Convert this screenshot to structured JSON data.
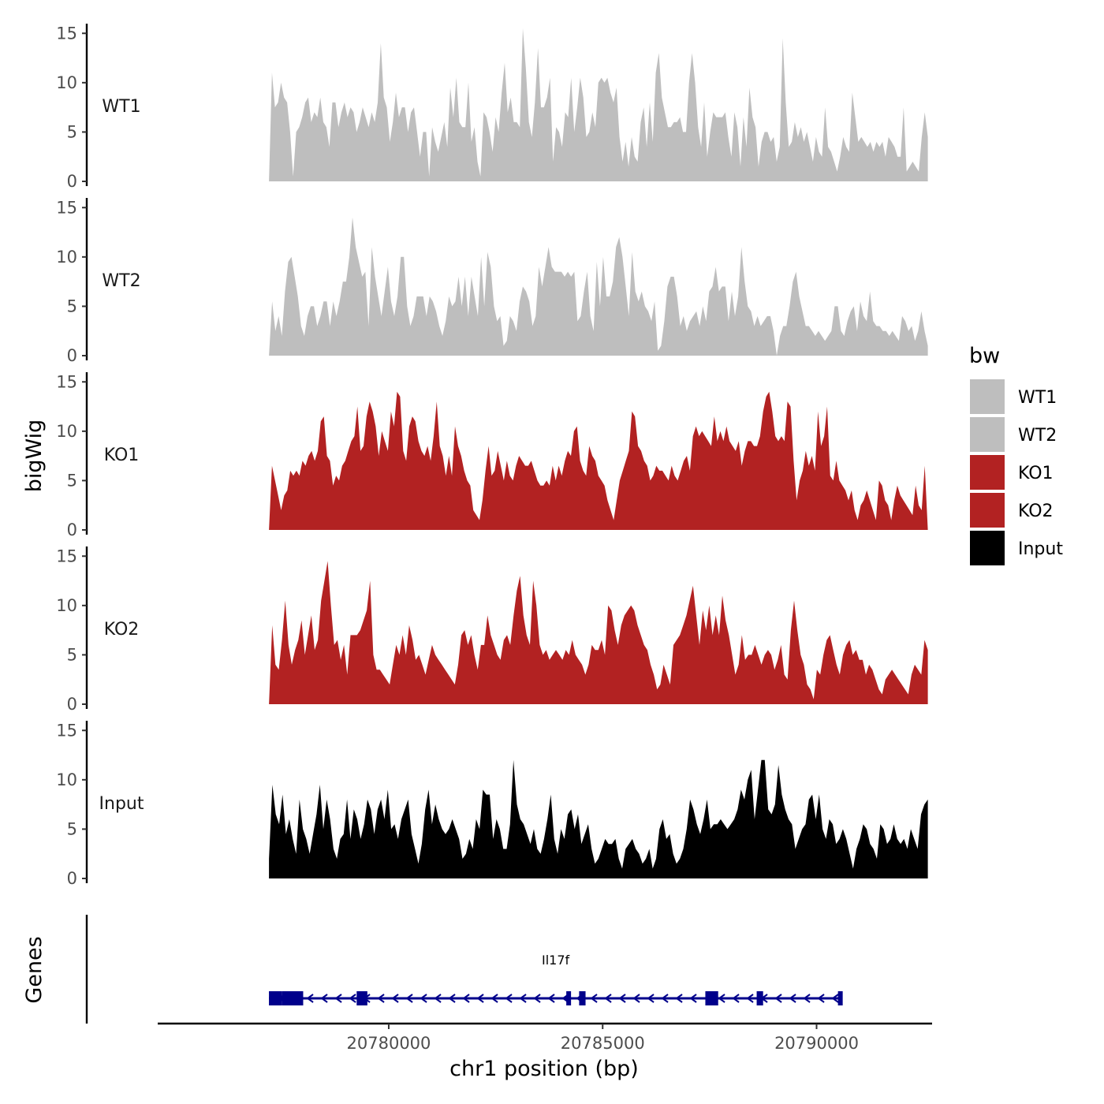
{
  "chart_data": {
    "type": "area",
    "ylabel": "bigWig",
    "xlabel": "chr1 position (bp)",
    "gene_track_label": "Genes",
    "x_range": [
      20774600,
      20792700
    ],
    "x_ticks": [
      20780000,
      20785000,
      20790000
    ],
    "x_tick_labels": [
      "20780000",
      "20785000",
      "20790000"
    ],
    "ylim": [
      0,
      15.5
    ],
    "y_ticks": [
      0,
      5,
      10,
      15
    ],
    "y_tick_labels": [
      "0",
      "5",
      "10",
      "15"
    ],
    "data_range": [
      20777200,
      20792600
    ],
    "series": [
      {
        "name": "WT1",
        "color": "#bebebe",
        "values": [
          0,
          11,
          7.5,
          8,
          10,
          8.5,
          8,
          5,
          0.5,
          5,
          5.5,
          6.5,
          8,
          8.5,
          6,
          7,
          6.5,
          8.5,
          6,
          5.5,
          3.5,
          8,
          8,
          5.5,
          7,
          8,
          6.5,
          7.5,
          7,
          5,
          6,
          7.5,
          6.5,
          5.5,
          7,
          6,
          8,
          14,
          8.5,
          7.5,
          4,
          6,
          9,
          6.5,
          7.5,
          7.5,
          5,
          7,
          7.5,
          5,
          2.5,
          5,
          5,
          0.5,
          5.5,
          4,
          3,
          4.5,
          6,
          3.5,
          9.5,
          6.5,
          10.5,
          6,
          5.5,
          5.5,
          10,
          4,
          5.5,
          2,
          0.5,
          7,
          6.5,
          5,
          3,
          6.5,
          5,
          9,
          12,
          7,
          8.5,
          6,
          6,
          5.5,
          15.5,
          11.5,
          6,
          4.5,
          8,
          13.5,
          7.5,
          7.5,
          8.5,
          10.5,
          2,
          5.5,
          5,
          3.5,
          7,
          6.5,
          10.5,
          5,
          7.5,
          10.5,
          8.5,
          4.5,
          5,
          7,
          5.5,
          10,
          10.5,
          10,
          10.5,
          9,
          8,
          9.5,
          4.5,
          2,
          4,
          1.5,
          4.5,
          2.5,
          2,
          6,
          7.5,
          3.5,
          8,
          4,
          11,
          13,
          8.5,
          7,
          5.5,
          5.5,
          6,
          6,
          6.5,
          5,
          5,
          10,
          13,
          10,
          5.5,
          3.5,
          8,
          2.5,
          5,
          7,
          6.5,
          6.5,
          6.5,
          7,
          4.5,
          2.5,
          7,
          5.5,
          1.5,
          6.5,
          3.5,
          9.5,
          6.5,
          5.5,
          1.5,
          4,
          5,
          5,
          4,
          4.5,
          2,
          3.5,
          14.5,
          8,
          3.5,
          4,
          6,
          4.5,
          5.5,
          4,
          5,
          3.5,
          2,
          4.5,
          3,
          2.5,
          7.5,
          3.5,
          3,
          2,
          1,
          2.5,
          4.5,
          3.5,
          3,
          9,
          6.5,
          4,
          4.5,
          4,
          3.5,
          4,
          3,
          4,
          3.5,
          4,
          2.5,
          4.5,
          4,
          3.5,
          2.5,
          2.5,
          7.5,
          1,
          1.5,
          2,
          1.5,
          1,
          4.5,
          7,
          4.5
        ]
      },
      {
        "name": "WT2",
        "color": "#bebebe",
        "values": [
          0,
          5.5,
          2.5,
          4,
          2,
          6.5,
          9.5,
          10,
          8,
          6,
          3,
          2,
          4,
          5,
          5,
          3,
          4,
          5.5,
          5.5,
          3,
          5.5,
          4,
          5.5,
          7.5,
          7.5,
          10,
          14,
          11,
          9.5,
          8,
          8.5,
          3,
          11,
          8,
          6,
          4,
          6.5,
          9,
          5.5,
          4,
          6,
          10,
          10,
          5,
          3,
          4,
          6,
          6,
          6,
          4,
          6,
          5.5,
          4.5,
          3,
          2,
          3.5,
          6,
          5,
          5.5,
          8,
          5,
          8,
          4,
          8,
          6,
          4,
          10,
          5,
          10.5,
          9,
          5,
          3.5,
          4,
          1,
          1.5,
          4,
          3.5,
          2.5,
          5.5,
          7,
          6.5,
          5.5,
          3,
          4,
          9,
          7,
          9,
          11,
          9,
          8.5,
          8.5,
          8.5,
          8,
          8.5,
          8,
          8.5,
          3.5,
          4,
          6.5,
          8.5,
          4,
          2.5,
          9.5,
          5,
          10,
          6,
          6,
          7.5,
          11,
          12,
          10,
          7,
          4,
          10.5,
          6.5,
          5.5,
          6.5,
          5,
          4.5,
          3.5,
          5.5,
          0.5,
          1,
          3.5,
          7,
          8,
          8,
          6,
          3,
          4,
          2.5,
          3.5,
          4,
          4.5,
          3,
          5,
          3.5,
          6.5,
          7,
          9,
          6.5,
          7,
          7,
          3.5,
          6.5,
          4,
          6,
          11,
          7.5,
          5,
          4.5,
          3,
          4,
          3,
          3.5,
          4,
          4,
          2.5,
          0,
          2,
          3,
          3,
          5,
          7.5,
          8.5,
          6,
          4.5,
          3,
          3,
          2.5,
          2,
          2.5,
          2,
          1.5,
          2,
          2.5,
          5,
          5,
          2.5,
          2,
          3.5,
          4.5,
          5,
          2.5,
          5.5,
          4,
          3.5,
          6.5,
          3.5,
          3,
          3,
          2.5,
          2.5,
          2,
          2.5,
          2,
          1.5,
          4,
          3.5,
          2.5,
          3,
          1.5,
          2.5,
          4.5,
          2.5,
          1
        ]
      },
      {
        "name": "KO1",
        "color": "#b22222",
        "values": [
          0,
          6.5,
          5,
          3.5,
          2,
          3.5,
          4,
          6,
          5.5,
          6,
          5.5,
          7,
          6.5,
          7.5,
          8,
          7,
          8,
          11,
          11.5,
          7.5,
          7,
          4.5,
          5.5,
          5,
          6.5,
          7,
          8,
          9,
          9.5,
          12.5,
          8,
          8.5,
          11.5,
          13,
          12,
          10.5,
          7.5,
          10,
          9,
          8,
          12,
          10.5,
          14,
          13.5,
          8,
          7,
          10.5,
          11.5,
          11,
          9,
          8,
          7.5,
          8.5,
          7,
          9.5,
          13,
          8.5,
          7.5,
          5.5,
          7.5,
          5.5,
          10.5,
          8.5,
          7.5,
          6,
          5,
          4.5,
          2,
          1.5,
          1,
          3,
          6,
          8.5,
          5.5,
          6,
          8,
          6.5,
          5,
          7,
          5.5,
          5,
          6.5,
          7.5,
          7,
          6.5,
          6.5,
          7,
          6,
          5,
          4.5,
          4.5,
          5,
          4.5,
          6.5,
          5,
          6.5,
          5.5,
          7,
          8,
          7.5,
          10,
          10.5,
          7,
          6,
          5.5,
          8.5,
          7.5,
          7,
          5.5,
          5,
          4.5,
          3,
          2,
          1,
          3,
          5,
          6,
          7,
          8,
          12,
          11.5,
          8.5,
          8,
          7,
          6.5,
          5,
          5.5,
          6.5,
          6,
          6,
          5.5,
          5,
          6.5,
          5.5,
          5,
          6,
          7,
          7.5,
          6,
          9.5,
          10.5,
          9.5,
          10,
          9.5,
          9,
          8.5,
          11.5,
          9,
          10,
          9,
          10.5,
          9,
          8.5,
          8,
          9,
          6.5,
          8,
          9,
          9,
          8.5,
          8.5,
          9.5,
          12,
          13.5,
          14,
          12,
          9.5,
          9,
          9.5,
          9,
          13,
          12.5,
          7,
          3,
          5,
          6,
          8,
          6.5,
          7.5,
          6,
          12,
          8.5,
          9.5,
          12.5,
          5.5,
          5,
          7,
          5,
          4.5,
          4,
          3,
          4,
          2,
          1,
          2.5,
          3,
          4,
          3,
          2,
          1,
          5,
          4.5,
          3,
          2.5,
          1,
          3,
          4.5,
          3.5,
          3,
          2.5,
          2,
          1.5,
          4.5,
          2.5,
          2,
          6.5,
          0
        ]
      },
      {
        "name": "KO2",
        "color": "#b22222",
        "values": [
          0,
          8,
          4,
          3.5,
          6.5,
          10.5,
          6,
          4,
          5.5,
          6.5,
          8.5,
          5,
          7,
          9,
          5.5,
          6.5,
          10.5,
          12.5,
          14.5,
          10,
          6,
          6.5,
          4.5,
          6,
          3,
          7,
          7,
          7,
          7.5,
          8.5,
          9.5,
          12.5,
          5,
          3.5,
          3.5,
          3,
          2.5,
          2,
          4,
          6,
          5,
          7,
          5,
          8,
          6.5,
          4.5,
          5,
          4,
          3,
          4.5,
          6,
          5,
          4.5,
          4,
          3.5,
          3,
          2.5,
          2,
          4,
          7,
          7.5,
          6,
          7,
          5,
          3.5,
          6,
          6,
          9,
          7,
          6,
          5,
          4.5,
          6.5,
          7,
          6,
          9,
          11.5,
          13,
          9,
          7,
          6,
          12.5,
          10,
          6,
          5,
          5.5,
          4.5,
          5,
          5.5,
          5,
          4.5,
          5.5,
          5,
          6.5,
          5,
          4.5,
          4,
          3,
          4,
          6,
          5.5,
          5.5,
          6.5,
          5,
          10,
          9.5,
          7.5,
          6,
          8,
          9,
          9.5,
          10,
          9.5,
          8,
          7,
          6,
          5.5,
          4,
          3,
          1.5,
          2,
          4,
          3,
          2,
          6,
          6.5,
          7,
          8,
          9,
          10.5,
          12,
          9,
          6,
          9.5,
          7.5,
          10,
          7,
          9,
          7,
          11,
          8.5,
          7,
          5,
          3,
          4,
          7,
          4.5,
          5,
          5,
          6,
          5,
          4,
          5,
          5.5,
          5,
          3.5,
          4.5,
          6,
          3,
          2.5,
          7.5,
          10.5,
          7.5,
          5,
          4,
          2,
          1.5,
          0.5,
          3.5,
          3,
          5,
          6.5,
          7,
          5.5,
          4,
          3,
          5,
          6,
          6.5,
          5,
          5.5,
          4.5,
          4.5,
          3,
          4,
          3.5,
          2.5,
          1.5,
          1,
          2.5,
          3,
          3.5,
          3,
          2.5,
          2,
          1.5,
          1,
          3,
          4,
          3.5,
          3,
          6.5,
          5.5
        ]
      },
      {
        "name": "Input",
        "color": "#000000",
        "values": [
          2,
          9.5,
          6.5,
          5.5,
          8.5,
          4.5,
          6,
          4,
          2.5,
          8,
          5,
          4,
          2.5,
          4.5,
          6.5,
          9.5,
          5,
          8,
          6,
          3,
          2,
          4,
          4.5,
          8,
          4,
          7,
          6,
          4,
          5.5,
          8,
          7,
          4.5,
          7,
          8,
          6,
          9,
          5,
          5.5,
          4,
          6,
          7,
          8,
          4.5,
          3,
          1.5,
          3.5,
          7,
          9,
          5.5,
          7.5,
          6,
          5,
          4.5,
          5,
          6,
          5,
          4,
          2,
          2.5,
          4,
          3,
          6,
          5,
          9,
          8.5,
          8.5,
          4,
          6,
          5,
          3,
          3,
          5.5,
          12,
          7.5,
          6,
          5.5,
          4.5,
          3.5,
          5,
          3,
          2.5,
          4,
          6,
          8.5,
          4,
          2.5,
          5,
          4,
          6.5,
          7,
          5,
          6.5,
          3.5,
          4.5,
          5.5,
          3,
          1.5,
          2,
          3,
          4,
          3.5,
          3.5,
          4,
          2,
          1,
          3,
          3.5,
          4,
          3,
          2.5,
          1.5,
          2,
          3,
          1,
          2,
          5,
          6,
          4,
          4.5,
          2.5,
          1.5,
          2,
          3,
          5,
          8,
          7,
          5.5,
          4.5,
          6,
          8,
          5,
          5.5,
          5.5,
          6,
          5.5,
          5,
          5.5,
          6,
          7,
          9,
          8,
          10,
          11,
          6,
          9,
          12,
          12,
          7,
          6.5,
          7.5,
          11.5,
          8.5,
          7,
          6,
          5.5,
          3,
          4,
          5,
          5.5,
          8,
          8.5,
          6,
          8.5,
          5,
          4,
          6,
          5.5,
          3.5,
          4,
          5,
          4,
          2.5,
          1,
          3,
          4,
          5.5,
          5,
          3.5,
          3,
          2,
          5.5,
          5,
          3.5,
          4,
          5.5,
          4,
          3.5,
          4,
          3,
          5,
          4,
          3,
          6.5,
          7.5,
          8
        ]
      }
    ],
    "gene": {
      "name": "Il17f",
      "strand": "-",
      "start": 20777200,
      "end": 20790600,
      "color": "#00008b",
      "exons": [
        [
          20777200,
          20777500
        ],
        [
          20777500,
          20778000
        ],
        [
          20779250,
          20779500
        ],
        [
          20784150,
          20784250
        ],
        [
          20784450,
          20784600
        ],
        [
          20787400,
          20787700
        ],
        [
          20788600,
          20788750
        ],
        [
          20790500,
          20790600
        ]
      ]
    },
    "legend": {
      "title": "bw",
      "entries": [
        {
          "label": "WT1",
          "color": "#bebebe"
        },
        {
          "label": "WT2",
          "color": "#bebebe"
        },
        {
          "label": "KO1",
          "color": "#b22222"
        },
        {
          "label": "KO2",
          "color": "#b22222"
        },
        {
          "label": "Input",
          "color": "#000000"
        }
      ]
    }
  }
}
